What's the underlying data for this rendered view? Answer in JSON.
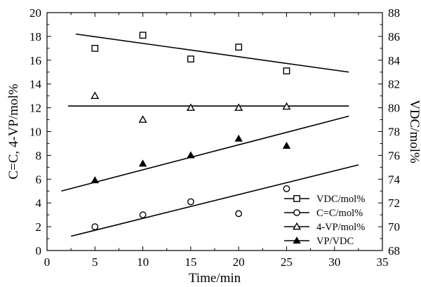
{
  "chart_data": {
    "type": "scatter",
    "title": "",
    "xlabel": "Time/min",
    "ylabel_left": "C=C, 4-VP/mol%",
    "ylabel_right": "VDC/mol%",
    "xlim": [
      0,
      35
    ],
    "ylim_left": [
      0,
      20
    ],
    "ylim_right": [
      68,
      88
    ],
    "xticks": [
      0,
      5,
      10,
      15,
      20,
      25,
      30,
      35
    ],
    "yticks_left": [
      0,
      2,
      4,
      6,
      8,
      10,
      12,
      14,
      16,
      18,
      20
    ],
    "yticks_right": [
      68,
      70,
      72,
      74,
      76,
      78,
      80,
      82,
      84,
      86,
      88
    ],
    "grid": false,
    "legend_position": "bottom-right",
    "series": [
      {
        "name": "VDC/mol%",
        "marker": "square-open",
        "axis": "right",
        "x": [
          5,
          10,
          15,
          20,
          25
        ],
        "y": [
          85.0,
          86.1,
          84.1,
          85.1,
          83.1
        ],
        "trend": {
          "x": [
            3,
            31.5
          ],
          "y": [
            86.2,
            83.0
          ]
        }
      },
      {
        "name": "C=C/mol%",
        "marker": "circle-open",
        "axis": "left",
        "x": [
          5,
          10,
          15,
          20,
          25
        ],
        "y": [
          2.0,
          3.0,
          4.1,
          3.1,
          5.2
        ],
        "trend": {
          "x": [
            2.5,
            32.5
          ],
          "y": [
            1.2,
            7.2
          ]
        }
      },
      {
        "name": "4-VP/mol%",
        "marker": "triangle-open",
        "axis": "left",
        "x": [
          5,
          10,
          15,
          20,
          25
        ],
        "y": [
          13.0,
          11.0,
          12.0,
          12.0,
          12.1
        ],
        "trend": {
          "x": [
            2.2,
            31.5
          ],
          "y": [
            12.15,
            12.15
          ]
        }
      },
      {
        "name": "VP/VDC",
        "marker": "triangle-filled",
        "axis": "left",
        "x": [
          5,
          10,
          15,
          20,
          25
        ],
        "y": [
          5.9,
          7.3,
          8.0,
          9.4,
          8.8
        ],
        "trend": {
          "x": [
            1.5,
            31.5
          ],
          "y": [
            5.0,
            11.3
          ]
        }
      }
    ]
  }
}
